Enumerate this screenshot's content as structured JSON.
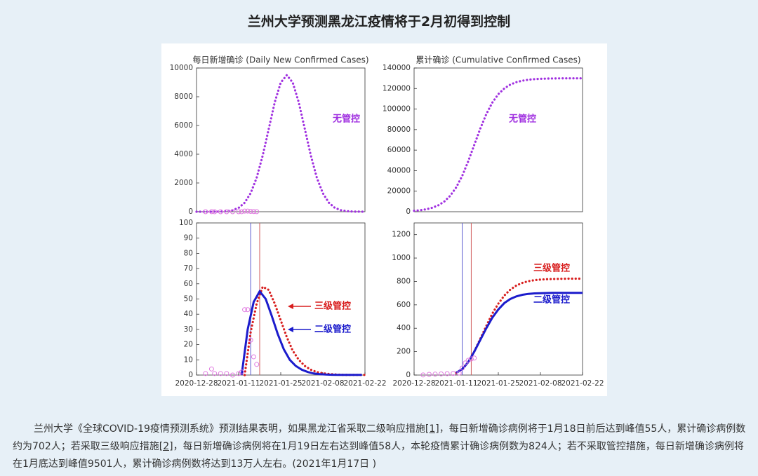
{
  "title": "兰州大学预测黑龙江疫情将于2月初得到控制",
  "chart_data": [
    {
      "type": "line",
      "title": "每日新增确诊 (Daily New Confirmed Cases)",
      "xlim": [
        "2020-12-28",
        "2021-02-22"
      ],
      "ylim": [
        0,
        10000
      ],
      "yticks": [
        0,
        2000,
        4000,
        6000,
        8000,
        10000
      ],
      "series": [
        {
          "name": "无管控",
          "color": "#a030e0",
          "style": "dotted",
          "x": [
            "2020-12-28",
            "2020-12-30",
            "2021-01-01",
            "2021-01-03",
            "2021-01-05",
            "2021-01-07",
            "2021-01-09",
            "2021-01-11",
            "2021-01-13",
            "2021-01-15",
            "2021-01-17",
            "2021-01-19",
            "2021-01-21",
            "2021-01-23",
            "2021-01-25",
            "2021-01-27",
            "2021-01-29",
            "2021-01-31",
            "2021-02-02",
            "2021-02-04",
            "2021-02-06",
            "2021-02-08",
            "2021-02-10",
            "2021-02-12",
            "2021-02-14",
            "2021-02-16",
            "2021-02-18",
            "2021-02-20",
            "2021-02-22"
          ],
          "values": [
            0,
            0,
            1,
            3,
            11,
            37,
            105,
            270,
            625,
            1286,
            2367,
            3905,
            5762,
            7607,
            8986,
            9501,
            8986,
            7607,
            5762,
            3905,
            2367,
            1286,
            625,
            270,
            105,
            37,
            11,
            3,
            1
          ]
        },
        {
          "color": "#e07ae0",
          "style": "circles",
          "x": [
            "2020-12-31",
            "2021-01-02",
            "2021-01-03",
            "2021-01-05",
            "2021-01-07",
            "2021-01-09",
            "2021-01-11",
            "2021-01-12",
            "2021-01-13",
            "2021-01-14",
            "2021-01-15",
            "2021-01-16",
            "2021-01-17"
          ],
          "values": [
            1,
            4,
            1,
            1,
            1,
            0,
            1,
            2,
            43,
            43,
            23,
            12,
            7
          ]
        }
      ]
    },
    {
      "type": "line",
      "title": "累计确诊 (Cumulative Confirmed Cases)",
      "xlim": [
        "2020-12-28",
        "2021-02-22"
      ],
      "ylim": [
        0,
        140000
      ],
      "yticks": [
        0,
        20000,
        40000,
        60000,
        80000,
        100000,
        120000,
        140000
      ],
      "series": [
        {
          "name": "无管控",
          "color": "#a030e0",
          "style": "dotted",
          "x": [
            "2020-12-28",
            "2020-12-30",
            "2021-01-01",
            "2021-01-03",
            "2021-01-05",
            "2021-01-07",
            "2021-01-09",
            "2021-01-11",
            "2021-01-13",
            "2021-01-15",
            "2021-01-17",
            "2021-01-19",
            "2021-01-21",
            "2021-01-23",
            "2021-01-25",
            "2021-01-27",
            "2021-01-29",
            "2021-01-31",
            "2021-02-02",
            "2021-02-04",
            "2021-02-06",
            "2021-02-08",
            "2021-02-10",
            "2021-02-12",
            "2021-02-14",
            "2021-02-16",
            "2021-02-18",
            "2021-02-20",
            "2021-02-22"
          ],
          "values": [
            870,
            1430,
            2340,
            3800,
            6160,
            9860,
            15500,
            23700,
            34960,
            49070,
            65000,
            80930,
            95040,
            106290,
            114500,
            120120,
            123840,
            126190,
            127660,
            128570,
            129130,
            129470,
            129680,
            129800,
            129880,
            129930,
            129960,
            129970,
            129980
          ]
        }
      ]
    },
    {
      "type": "line",
      "xlim": [
        "2020-12-28",
        "2021-02-22"
      ],
      "ylim": [
        0,
        100
      ],
      "yticks": [
        0,
        10,
        20,
        30,
        40,
        50,
        60,
        70,
        80,
        90,
        100
      ],
      "xticks": [
        "2020-12-28",
        "2021-01-11",
        "2021-01-25",
        "2021-02-08",
        "2021-02-22"
      ],
      "markers": [
        {
          "x": "2021-01-15",
          "color": "#5a5ad0"
        },
        {
          "x": "2021-01-18",
          "color": "#d05a5a"
        }
      ],
      "series": [
        {
          "name": "三级管控",
          "color": "#d81e1e",
          "style": "dotted",
          "x": [
            "2021-01-13",
            "2021-01-15",
            "2021-01-17",
            "2021-01-19",
            "2021-01-21",
            "2021-01-23",
            "2021-01-25",
            "2021-01-27",
            "2021-01-29",
            "2021-01-31",
            "2021-02-02",
            "2021-02-04",
            "2021-02-06",
            "2021-02-08",
            "2021-02-10",
            "2021-02-12",
            "2021-02-14",
            "2021-02-16",
            "2021-02-18",
            "2021-02-20",
            "2021-02-22"
          ],
          "values": [
            0,
            28,
            47,
            58,
            56,
            47,
            36,
            25,
            16,
            10,
            6,
            3.5,
            2,
            1.2,
            0.7,
            0.4,
            0.2,
            0.1,
            0.1,
            0.1,
            0.1
          ]
        },
        {
          "name": "二级管控",
          "color": "#1c1ccc",
          "style": "solid",
          "x": [
            "2021-01-12",
            "2021-01-14",
            "2021-01-16",
            "2021-01-18",
            "2021-01-20",
            "2021-01-22",
            "2021-01-24",
            "2021-01-26",
            "2021-01-28",
            "2021-01-30",
            "2021-02-01",
            "2021-02-03",
            "2021-02-05",
            "2021-02-07",
            "2021-02-09",
            "2021-02-11",
            "2021-02-13",
            "2021-02-15",
            "2021-02-17",
            "2021-02-19",
            "2021-02-21"
          ],
          "values": [
            0,
            30,
            48,
            55,
            50,
            39,
            27,
            17,
            10,
            6,
            3.5,
            2,
            1,
            0.6,
            0.3,
            0.2,
            0.1,
            0.1,
            0.1,
            0.1,
            0.1
          ]
        },
        {
          "color": "#e07ae0",
          "style": "circles",
          "x": [
            "2020-12-31",
            "2021-01-02",
            "2021-01-03",
            "2021-01-05",
            "2021-01-07",
            "2021-01-09",
            "2021-01-11",
            "2021-01-12",
            "2021-01-13",
            "2021-01-14",
            "2021-01-15",
            "2021-01-16",
            "2021-01-17"
          ],
          "values": [
            1,
            4,
            1,
            1,
            1,
            0,
            1,
            2,
            43,
            43,
            23,
            12,
            7
          ]
        }
      ]
    },
    {
      "type": "line",
      "xlim": [
        "2020-12-28",
        "2021-02-22"
      ],
      "ylim": [
        0,
        1300
      ],
      "yticks": [
        0,
        200,
        400,
        600,
        800,
        1000,
        1200
      ],
      "xticks": [
        "2020-12-28",
        "2021-01-11",
        "2021-01-25",
        "2021-02-08",
        "2021-02-22"
      ],
      "markers": [
        {
          "x": "2021-01-13",
          "color": "#5a5ad0"
        },
        {
          "x": "2021-01-16",
          "color": "#d05a5a"
        }
      ],
      "series": [
        {
          "name": "三级管控",
          "color": "#d81e1e",
          "style": "dotted",
          "x": [
            "2021-01-11",
            "2021-01-13",
            "2021-01-15",
            "2021-01-17",
            "2021-01-19",
            "2021-01-21",
            "2021-01-23",
            "2021-01-25",
            "2021-01-27",
            "2021-01-29",
            "2021-01-31",
            "2021-02-02",
            "2021-02-04",
            "2021-02-06",
            "2021-02-08",
            "2021-02-10",
            "2021-02-12",
            "2021-02-14",
            "2021-02-16",
            "2021-02-18",
            "2021-02-20",
            "2021-02-22"
          ],
          "values": [
            20,
            50,
            110,
            200,
            310,
            420,
            525,
            610,
            680,
            730,
            765,
            788,
            802,
            811,
            816,
            819,
            821,
            822,
            823,
            824,
            824,
            824
          ]
        },
        {
          "name": "二级管控",
          "color": "#1c1ccc",
          "style": "solid",
          "x": [
            "2021-01-11",
            "2021-01-13",
            "2021-01-15",
            "2021-01-17",
            "2021-01-19",
            "2021-01-21",
            "2021-01-23",
            "2021-01-25",
            "2021-01-27",
            "2021-01-29",
            "2021-01-31",
            "2021-02-02",
            "2021-02-04",
            "2021-02-06",
            "2021-02-08",
            "2021-02-10",
            "2021-02-12",
            "2021-02-14",
            "2021-02-16",
            "2021-02-18",
            "2021-02-20",
            "2021-02-22"
          ],
          "values": [
            20,
            50,
            110,
            200,
            300,
            400,
            490,
            560,
            615,
            650,
            672,
            686,
            694,
            698,
            700,
            701,
            702,
            702,
            702,
            702,
            702,
            702
          ]
        },
        {
          "color": "#e07ae0",
          "style": "circles",
          "x": [
            "2020-12-31",
            "2021-01-02",
            "2021-01-04",
            "2021-01-06",
            "2021-01-08",
            "2021-01-10",
            "2021-01-12",
            "2021-01-13",
            "2021-01-14",
            "2021-01-15",
            "2021-01-16",
            "2021-01-17"
          ],
          "values": [
            1,
            6,
            8,
            10,
            12,
            14,
            17,
            60,
            103,
            126,
            138,
            145
          ]
        }
      ]
    }
  ],
  "paragraph": [
    {
      "text": "兰州大学《全球COVID-19疫情预测系统》预测结果表明，如果黑龙江省采取二级响应措施"
    },
    {
      "link": "[1]"
    },
    {
      "text": "，每日新增确诊病例将于1月18日前后达到峰值55人，累计确诊病例数约为702人；若采取三级响应措施"
    },
    {
      "link": "[2]"
    },
    {
      "text": "，每日新增确诊病例将在1月19日左右达到峰值58人，本轮疫情累计确诊病例数为824人；若不采取管控措施，每日新增确诊病例将在1月底达到峰值9501人，累计确诊病例数将达到13万人左右。(2021年1月17日 )"
    }
  ]
}
